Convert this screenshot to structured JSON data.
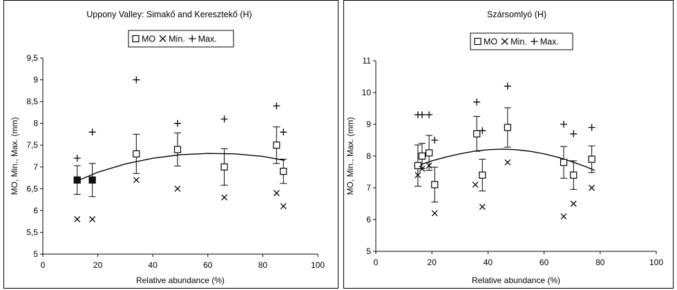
{
  "chart_data": [
    {
      "type": "scatter",
      "title": "Uppony Valley: Simakő and Keresztekő (H)",
      "xlabel": "Relative abundance (%)",
      "ylabel": "MO, Min., Max. (mm)",
      "xlim": [
        0,
        100
      ],
      "ylim": [
        5,
        9.5
      ],
      "x_ticks": [
        "0",
        "20",
        "40",
        "60",
        "80",
        "100"
      ],
      "y_ticks": [
        "5",
        "5,5",
        "6",
        "6,5",
        "7",
        "7,5",
        "8",
        "8,5",
        "9",
        "9,5"
      ],
      "legend": {
        "placement": "top-center",
        "entries": [
          "MO",
          "Min.",
          "Max."
        ]
      },
      "series": [
        {
          "name": "MO",
          "marker": "square",
          "points": [
            {
              "x": 12.5,
              "y": 6.7,
              "err": 0.33,
              "filled": true
            },
            {
              "x": 18,
              "y": 6.7,
              "err": 0.38,
              "filled": true
            },
            {
              "x": 34,
              "y": 7.3,
              "err": 0.45,
              "filled": false
            },
            {
              "x": 49,
              "y": 7.4,
              "err": 0.38,
              "filled": false
            },
            {
              "x": 66,
              "y": 7.0,
              "err": 0.42,
              "filled": false
            },
            {
              "x": 85,
              "y": 7.5,
              "err": 0.42,
              "filled": false
            },
            {
              "x": 87.5,
              "y": 6.9,
              "err": 0.28,
              "filled": false
            }
          ]
        },
        {
          "name": "Min.",
          "marker": "x",
          "points": [
            {
              "x": 12.5,
              "y": 5.8
            },
            {
              "x": 18,
              "y": 5.8
            },
            {
              "x": 34,
              "y": 6.7
            },
            {
              "x": 49,
              "y": 6.5
            },
            {
              "x": 66,
              "y": 6.3
            },
            {
              "x": 85,
              "y": 6.4
            },
            {
              "x": 87.5,
              "y": 6.1
            }
          ]
        },
        {
          "name": "Max.",
          "marker": "plus",
          "points": [
            {
              "x": 12.5,
              "y": 7.2
            },
            {
              "x": 18,
              "y": 7.8
            },
            {
              "x": 34,
              "y": 9.0
            },
            {
              "x": 49,
              "y": 8.0
            },
            {
              "x": 66,
              "y": 8.1
            },
            {
              "x": 85,
              "y": 8.4
            },
            {
              "x": 87.5,
              "y": 7.8
            }
          ]
        }
      ],
      "trend_curve": [
        {
          "x": 12.5,
          "y": 6.68
        },
        {
          "x": 20,
          "y": 6.88
        },
        {
          "x": 30,
          "y": 7.07
        },
        {
          "x": 40,
          "y": 7.2
        },
        {
          "x": 50,
          "y": 7.28
        },
        {
          "x": 60,
          "y": 7.31
        },
        {
          "x": 70,
          "y": 7.3
        },
        {
          "x": 80,
          "y": 7.24
        },
        {
          "x": 88,
          "y": 7.15
        }
      ]
    },
    {
      "type": "scatter",
      "title": "Szársomlyó (H)",
      "xlabel": "Relative abundance (%)",
      "ylabel": "MO, Min., Max. (mm)",
      "xlim": [
        0,
        100
      ],
      "ylim": [
        5,
        11
      ],
      "x_ticks": [
        "0",
        "20",
        "40",
        "60",
        "80",
        "100"
      ],
      "y_ticks": [
        "5",
        "6",
        "7",
        "8",
        "9",
        "10",
        "11"
      ],
      "legend": {
        "placement": "top-center",
        "entries": [
          "MO",
          "Min.",
          "Max."
        ]
      },
      "series": [
        {
          "name": "MO",
          "marker": "square",
          "points": [
            {
              "x": 15,
              "y": 7.7,
              "err": 0.65,
              "filled": false
            },
            {
              "x": 16.5,
              "y": 8.0,
              "err": 0.4,
              "filled": false
            },
            {
              "x": 19,
              "y": 8.1,
              "err": 0.55,
              "filled": false
            },
            {
              "x": 21,
              "y": 7.1,
              "err": 0.55,
              "filled": false
            },
            {
              "x": 36,
              "y": 8.7,
              "err": 0.55,
              "filled": false
            },
            {
              "x": 38,
              "y": 7.4,
              "err": 0.5,
              "filled": false
            },
            {
              "x": 47,
              "y": 8.9,
              "err": 0.62,
              "filled": false
            },
            {
              "x": 67,
              "y": 7.8,
              "err": 0.5,
              "filled": false
            },
            {
              "x": 70.5,
              "y": 7.4,
              "err": 0.45,
              "filled": false
            },
            {
              "x": 77,
              "y": 7.9,
              "err": 0.42,
              "filled": false
            }
          ]
        },
        {
          "name": "Min.",
          "marker": "x",
          "points": [
            {
              "x": 15,
              "y": 7.4
            },
            {
              "x": 16.5,
              "y": 7.6
            },
            {
              "x": 19,
              "y": 7.7
            },
            {
              "x": 21,
              "y": 6.2
            },
            {
              "x": 35.5,
              "y": 7.1
            },
            {
              "x": 38,
              "y": 6.4
            },
            {
              "x": 47,
              "y": 7.8
            },
            {
              "x": 67,
              "y": 6.1
            },
            {
              "x": 70.5,
              "y": 6.5
            },
            {
              "x": 77,
              "y": 7.0
            }
          ]
        },
        {
          "name": "Max.",
          "marker": "plus",
          "points": [
            {
              "x": 15,
              "y": 9.3
            },
            {
              "x": 16.5,
              "y": 9.3
            },
            {
              "x": 19,
              "y": 9.3
            },
            {
              "x": 21,
              "y": 8.5
            },
            {
              "x": 36,
              "y": 9.7
            },
            {
              "x": 38,
              "y": 8.8
            },
            {
              "x": 47,
              "y": 10.2
            },
            {
              "x": 67,
              "y": 9.0
            },
            {
              "x": 70.5,
              "y": 8.7
            },
            {
              "x": 77,
              "y": 8.9
            }
          ]
        }
      ],
      "trend_curve": [
        {
          "x": 15,
          "y": 7.7
        },
        {
          "x": 20,
          "y": 7.85
        },
        {
          "x": 25,
          "y": 7.97
        },
        {
          "x": 30,
          "y": 8.07
        },
        {
          "x": 35,
          "y": 8.15
        },
        {
          "x": 40,
          "y": 8.2
        },
        {
          "x": 45,
          "y": 8.22
        },
        {
          "x": 50,
          "y": 8.2
        },
        {
          "x": 55,
          "y": 8.15
        },
        {
          "x": 60,
          "y": 8.07
        },
        {
          "x": 65,
          "y": 7.96
        },
        {
          "x": 70,
          "y": 7.82
        },
        {
          "x": 75,
          "y": 7.66
        },
        {
          "x": 78,
          "y": 7.55
        }
      ]
    }
  ]
}
